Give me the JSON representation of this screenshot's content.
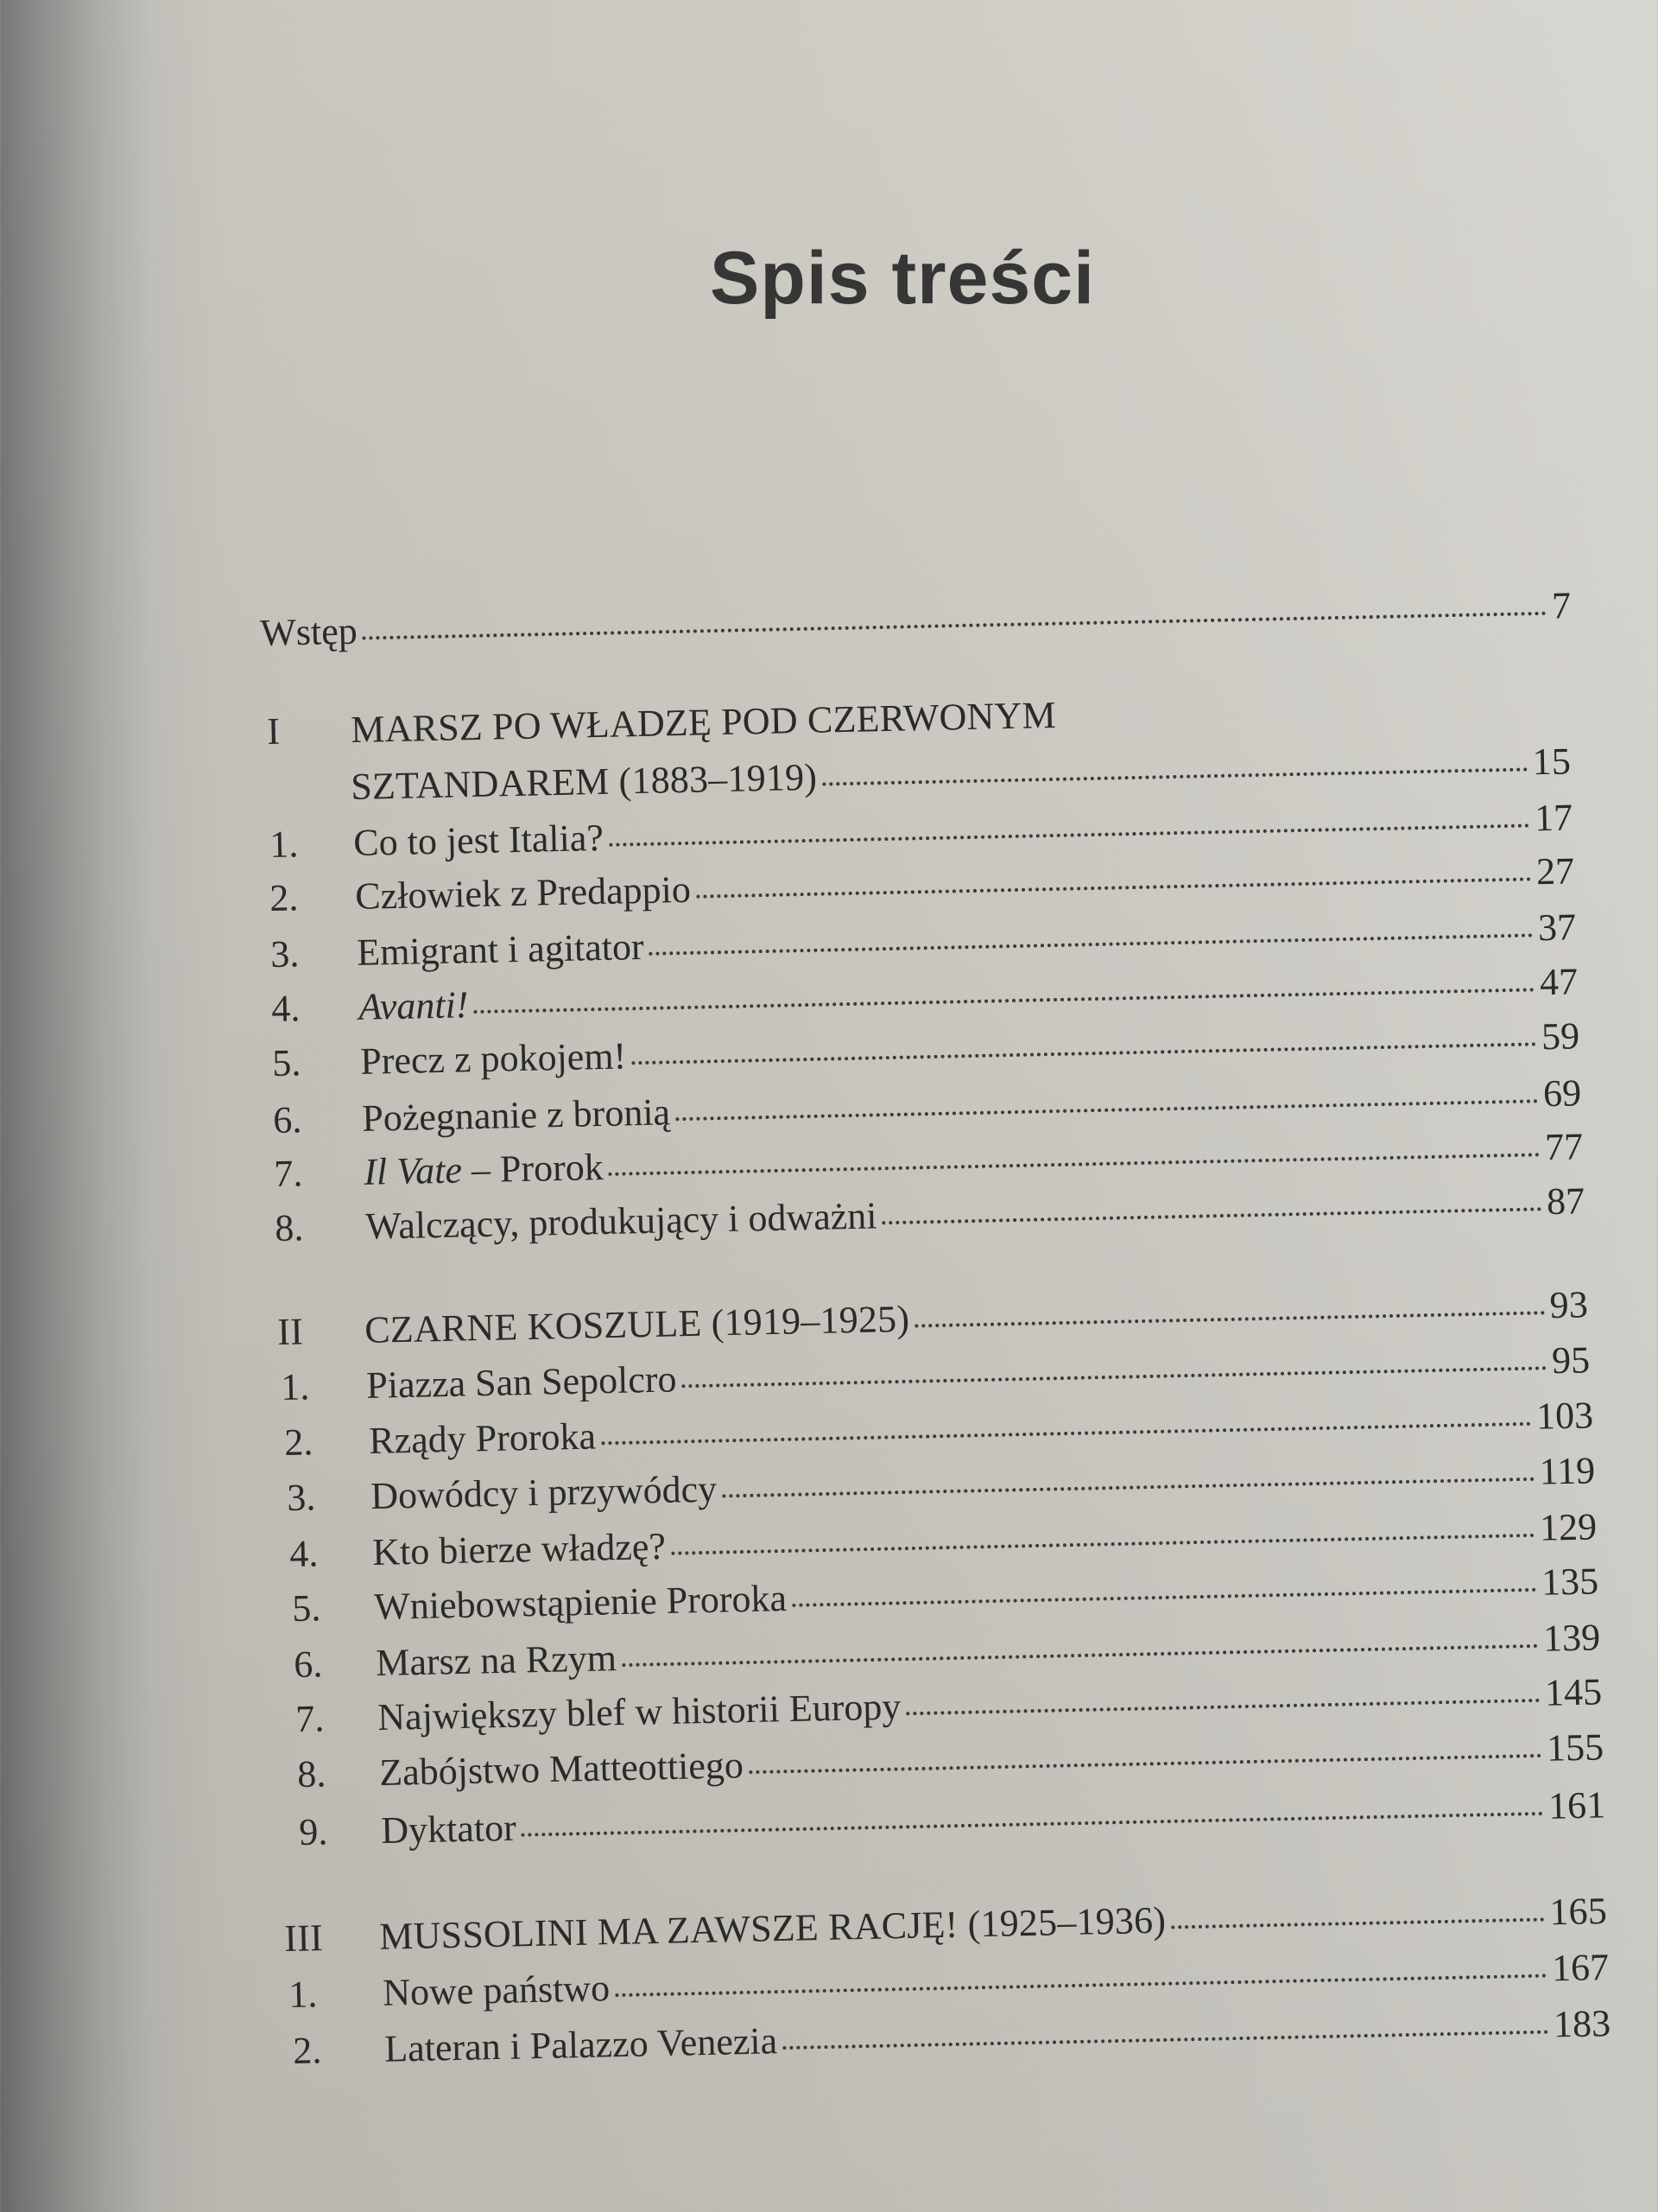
{
  "page_title": "Spis treści",
  "entries": [
    {
      "num": "",
      "title": "Wstęp",
      "page": "7"
    },
    {
      "num": "I",
      "title": "MARSZ PO WŁADZĘ POD CZERWONYM",
      "page": "",
      "type": "chapter"
    },
    {
      "num": "",
      "title": "SZTANDAREM (1883–1919)",
      "page": "15",
      "type": "chapter"
    },
    {
      "num": "1.",
      "title": "Co to jest Italia?",
      "page": "17"
    },
    {
      "num": "2.",
      "title": "Człowiek z Predappio",
      "page": "27"
    },
    {
      "num": "3.",
      "title": "Emigrant i agitator",
      "page": "37"
    },
    {
      "num": "4.",
      "title": "Avanti!",
      "page": "47",
      "italic": true
    },
    {
      "num": "5.",
      "title": "Precz z pokojem!",
      "page": "59"
    },
    {
      "num": "6.",
      "title": "Pożegnanie z bronią",
      "page": "69"
    },
    {
      "num": "7.",
      "title": "Il Vate",
      "title_suffix": " – Prorok",
      "page": "77",
      "italic": true
    },
    {
      "num": "8.",
      "title": "Walczący, produkujący i odważni",
      "page": "87"
    },
    {
      "num": "II",
      "title": "CZARNE KOSZULE (1919–1925)",
      "page": "93",
      "type": "chapter"
    },
    {
      "num": "1.",
      "title": "Piazza San Sepolcro",
      "page": "95"
    },
    {
      "num": "2.",
      "title": "Rządy Proroka",
      "page": "103"
    },
    {
      "num": "3.",
      "title": "Dowódcy i przywódcy",
      "page": "119"
    },
    {
      "num": "4.",
      "title": "Kto bierze władzę?",
      "page": "129"
    },
    {
      "num": "5.",
      "title": "Wniebowstąpienie Proroka",
      "page": "135"
    },
    {
      "num": "6.",
      "title": "Marsz na Rzym",
      "page": "139"
    },
    {
      "num": "7.",
      "title": "Największy blef w historii Europy",
      "page": "145"
    },
    {
      "num": "8.",
      "title": "Zabójstwo Matteottiego",
      "page": "155"
    },
    {
      "num": "9.",
      "title": "Dyktator",
      "page": "161"
    },
    {
      "num": "III",
      "title": "MUSSOLINI MA ZAWSZE RACJĘ! (1925–1936)",
      "page": "165",
      "type": "chapter"
    },
    {
      "num": "1.",
      "title": "Nowe państwo",
      "page": "167"
    },
    {
      "num": "2.",
      "title": "Lateran i Palazzo Venezia",
      "page": "183"
    }
  ]
}
